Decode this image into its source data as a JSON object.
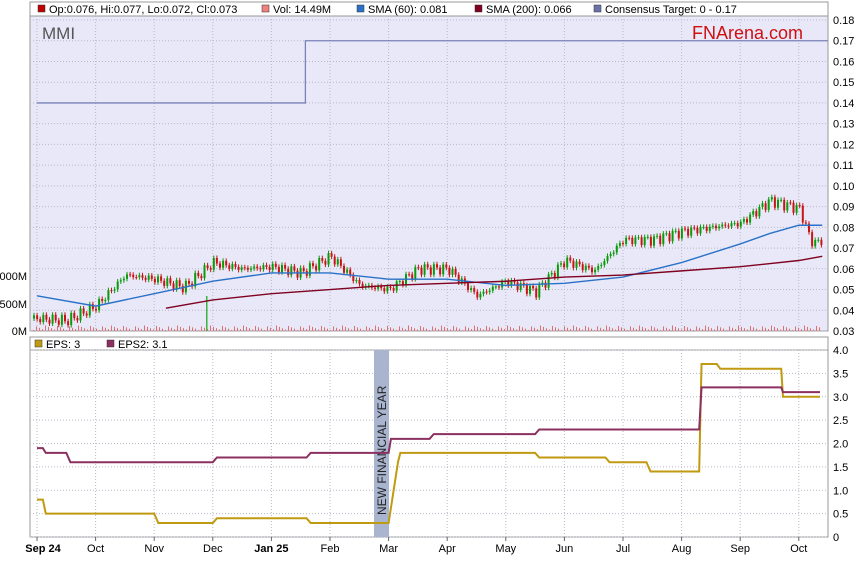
{
  "symbol": "MMI",
  "brand": "FNArena.com",
  "legend_top": [
    {
      "label": "Op:0.076, Hi:0.077, Lo:0.072, Cl:0.073",
      "color": "#c00000"
    },
    {
      "label": "Vol: 14.49M",
      "color": "#f08080"
    },
    {
      "label": "SMA (60): 0.081",
      "color": "#2a72c8"
    },
    {
      "label": "SMA (200): 0.066",
      "color": "#800020"
    },
    {
      "label": "Consensus Target: 0 - 0.17",
      "color": "#6b73a8"
    }
  ],
  "legend_bottom": [
    {
      "label": "EPS: 3",
      "color": "#c09a10"
    },
    {
      "label": "EPS2: 3.1",
      "color": "#8b3060"
    }
  ],
  "annotation": "NEW FINANCIAL YEAR",
  "colors": {
    "plot_bg": "#e8e8f8",
    "up": "#0a9a0a",
    "down": "#c81414",
    "grid": "#b8b8c8"
  },
  "chart_data": [
    {
      "type": "line",
      "panel": "price",
      "title": "MMI",
      "x_ticks": [
        "Sep 24",
        "Oct",
        "Nov",
        "Dec",
        "Jan 25",
        "Feb",
        "Mar",
        "Apr",
        "May",
        "Jun",
        "Jul",
        "Aug",
        "Sep",
        "Oct"
      ],
      "y_ticks": [
        "0.03",
        "0.04",
        "0.05",
        "0.06",
        "0.07",
        "0.08",
        "0.09",
        "0.10",
        "0.11",
        "0.12",
        "0.13",
        "0.14",
        "0.15",
        "0.16",
        "0.17",
        "0.18"
      ],
      "ylim": [
        0.03,
        0.18
      ],
      "volume_ticks": [
        "0M",
        "500M",
        "000M"
      ],
      "grid": true,
      "legend": "top",
      "series": [
        {
          "name": "Price",
          "x": [
            0,
            0.5,
            1,
            1.5,
            2,
            2.5,
            3,
            3.5,
            4,
            4.5,
            5,
            5.5,
            6,
            6.5,
            7,
            7.5,
            8,
            8.5,
            9,
            9.5,
            10,
            10.5,
            11,
            11.5,
            12,
            12.5,
            13,
            13.2
          ],
          "values": [
            0.036,
            0.035,
            0.042,
            0.057,
            0.055,
            0.051,
            0.063,
            0.06,
            0.061,
            0.058,
            0.066,
            0.052,
            0.05,
            0.06,
            0.06,
            0.047,
            0.054,
            0.049,
            0.064,
            0.059,
            0.074,
            0.074,
            0.078,
            0.08,
            0.082,
            0.093,
            0.089,
            0.073
          ]
        },
        {
          "name": "SMA (60)",
          "x": [
            0,
            1,
            2,
            3,
            4,
            5,
            6,
            7,
            8,
            9,
            10,
            11,
            12,
            12.5,
            13,
            13.4
          ],
          "values": [
            0.047,
            0.042,
            0.048,
            0.054,
            0.058,
            0.058,
            0.055,
            0.055,
            0.052,
            0.053,
            0.056,
            0.063,
            0.072,
            0.077,
            0.081,
            0.081
          ]
        },
        {
          "name": "SMA (200)",
          "x": [
            2.2,
            3,
            4,
            5,
            6,
            7,
            8,
            9,
            10,
            11,
            12,
            13,
            13.4
          ],
          "values": [
            0.041,
            0.045,
            0.048,
            0.05,
            0.052,
            0.053,
            0.054,
            0.056,
            0.057,
            0.059,
            0.061,
            0.064,
            0.066
          ]
        },
        {
          "name": "Consensus Target",
          "x": [
            0,
            4.58,
            4.58,
            13.4
          ],
          "values": [
            0.14,
            0.14,
            0.17,
            0.17
          ]
        }
      ]
    },
    {
      "type": "line",
      "panel": "eps",
      "y_ticks": [
        "0",
        "0.5",
        "1.0",
        "1.5",
        "2.0",
        "2.5",
        "3.0",
        "3.5",
        "4.0"
      ],
      "ylim": [
        0,
        4
      ],
      "grid": true,
      "legend": "top",
      "series": [
        {
          "name": "EPS",
          "x": [
            0,
            0.1,
            0.15,
            2.0,
            2.07,
            3.0,
            3.07,
            4.6,
            4.67,
            6.0,
            6.16,
            6.2,
            8.5,
            8.57,
            9.7,
            9.77,
            10.4,
            10.47,
            11.3,
            11.34,
            11.6,
            11.66,
            12.7,
            12.73,
            13.4
          ],
          "values": [
            0.8,
            0.8,
            0.5,
            0.5,
            0.3,
            0.3,
            0.4,
            0.4,
            0.3,
            0.3,
            1.6,
            1.8,
            1.8,
            1.7,
            1.7,
            1.6,
            1.6,
            1.4,
            1.4,
            3.7,
            3.7,
            3.6,
            3.6,
            3.0,
            3.0
          ]
        },
        {
          "name": "EPS2",
          "x": [
            0,
            0.1,
            0.15,
            0.5,
            0.57,
            3.0,
            3.07,
            4.6,
            4.67,
            6.0,
            6.04,
            6.7,
            6.77,
            8.5,
            8.57,
            11.3,
            11.34,
            12.7,
            12.73,
            13.4
          ],
          "values": [
            1.9,
            1.9,
            1.8,
            1.8,
            1.6,
            1.6,
            1.7,
            1.7,
            1.8,
            1.8,
            2.1,
            2.1,
            2.2,
            2.2,
            2.3,
            2.3,
            3.2,
            3.2,
            3.1,
            3.1
          ]
        }
      ]
    }
  ]
}
